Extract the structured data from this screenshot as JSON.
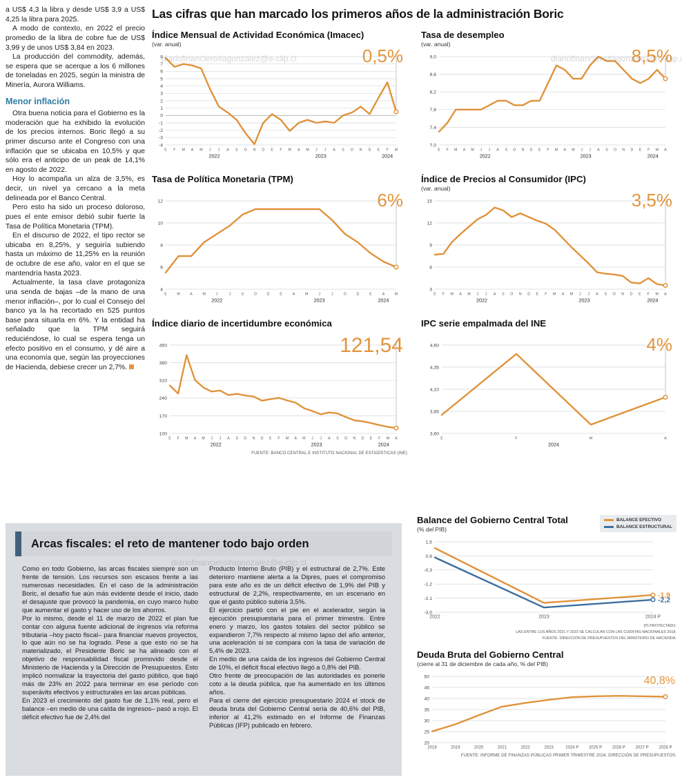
{
  "colors": {
    "accent": "#e2953c",
    "blue": "#3c6e9e",
    "heading_teal": "#2f7da6",
    "panel_gray": "#d9dde1",
    "header_bar": "#42607c"
  },
  "watermark": "diariofinanciero#agonzalez@e-clip.cl",
  "main_title": "Las cifras que han marcado los primeros años de la administración Boric",
  "article": {
    "top": [
      "a US$ 4,3 la libra y desde US$ 3,9 a US$ 4,25 la libra para 2025.",
      "A modo de contexto, en 2022 el precio promedio de la libra de cobre fue de US$ 3,99 y de unos US$ 3,84 en 2023.",
      "La producción del commodity, además, se espera que se acerque a los 6 millones de toneladas en 2025, según la ministra de Minería, Aurora Williams."
    ],
    "heading": "Menor inflación",
    "inflacion": [
      "Otra buena noticia para el Gobierno es la moderación que ha exhibido la evolución de los precios internos. Boric llegó a su primer discurso ante el Congreso con una inflación que se ubicaba en 10,5% y que sólo era el anticipo de un peak de 14,1% en agosto de 2022.",
      "Hoy lo acompaña un alza de 3,5%, es decir, un nivel ya cercano a la meta delineada por el Banco Central.",
      "Pero esto ha sido un proceso doloroso, pues el ente emisor debió subir fuerte la Tasa de Política Monetaria (TPM).",
      "En el discurso de 2022, el tipo rector se ubicaba en 8,25%, y seguiría subiendo hasta un máximo de 11,25% en la reunión de octubre de ese año, valor en el que se mantendría hasta 2023."
    ],
    "last": "Actualmente, la tasa clave protagoniza una senda de bajas –de la mano de una menor inflación–, por lo cual el Consejo del banco ya la ha recortado en 525 puntos base para situarla en 6%. Y la entidad ha señalado que la TPM seguirá reduciéndose, lo cual se espera tenga un efecto positivo en el consumo, y dé aire a una economía que, según las proyecciones de Hacienda, debiese crecer un 2,7%."
  },
  "fiscal": {
    "title": "Arcas fiscales: el reto de mantener todo bajo orden",
    "col1": [
      "Como en todo Gobierno, las arcas fiscales siempre son un frente de tensión. Los recursos son escasos frente a las numerosas necesidades. En el caso de la administración Boric, el desafío fue aún más evidente desde el inicio, dado el desajuste que provocó la pandemia, en cuyo marco hubo que aumentar el gasto y hacer uso de los ahorros.",
      "Por lo mismo, desde el 11 de marzo de 2022 el plan fue contar con alguna fuente adicional de ingresos vía reforma tributaria –hoy pacto fiscal– para financiar nuevos proyectos, lo que aún no se ha logrado. Pese a que esto no se ha materializado, el Presidente Boric se ha alineado con el objetivo de responsabilidad fiscal promovido desde el Ministerio de Hacienda y la Dirección de Presupuestos. Esto implicó normalizar la trayectoria del gasto público, que bajó más de 23% en 2022 para terminar en ese período con superávits efectivos y estructurales en las arcas públicas.",
      "En 2023 el crecimiento del gasto fue de 1,1% real, pero el balance –en medio de una caída de ingresos– pasó a rojo. El déficit efectivo fue de 2,4% del"
    ],
    "col2": [
      "Producto Interno Bruto (PIB) y el estructural de 2,7%. Este deterioro mantiene alerta a la Dipres, pues el compromiso para este año es de un déficit efectivo de 1,9% del PIB y estructural de 2,2%, respectivamente, en un escenario en que el gasto público subiría 3,5%.",
      "El ejercicio partió con el pie en el acelerador, según la ejecución presupuestaria para el primer trimestre. Entre enero y marzo, los gastos totales del sector público se expandieron 7,7% respecto al mismo lapso del año anterior, una aceleración si se compara con la tasa de variación de 5,4% de 2023.",
      "En medio de una caída de los ingresos del Gobierno Central de 10%, el déficit fiscal efectivo llegó a 0,8% del PIB.",
      "Otro frente de preocupación de las autoridades es ponerle coto a la deuda pública, que ha aumentado en los últimos años.",
      "Para el cierre del ejercicio presupuestario 2024 el stock de deuda bruta del Gobierno Central sería de 40,6% del PIB, inferior al 41,2% estimado en el Informe de Finanzas Públicas (IFP) publicado en febrero."
    ]
  },
  "chart_data": [
    {
      "id": "imacec",
      "type": "line",
      "title": "Índice Mensual de Actividad Económica (Imacec)",
      "subtitle": "(var. anual)",
      "big_value": "0,5%",
      "ylim": [
        -4,
        8
      ],
      "yticks": [
        8,
        7,
        6,
        5,
        4,
        3,
        2,
        1,
        0,
        -1,
        -2,
        -3,
        -4
      ],
      "ytick_labels": [
        "8",
        "7",
        "6",
        "5",
        "4",
        "3",
        "2",
        "1",
        "0",
        "-1",
        "-2",
        "-3",
        "-4"
      ],
      "x_labels": [
        "E",
        "F",
        "M",
        "A",
        "M",
        "J",
        "J",
        "A",
        "S",
        "O",
        "N",
        "D",
        "E",
        "F",
        "M",
        "A",
        "M",
        "J",
        "J",
        "A",
        "S",
        "O",
        "N",
        "D",
        "E",
        "F",
        "M"
      ],
      "year_labels": [
        {
          "label": "2022",
          "start": 0,
          "end": 11
        },
        {
          "label": "2023",
          "start": 12,
          "end": 23
        },
        {
          "label": "2024",
          "start": 24,
          "end": 26
        }
      ],
      "margins": {
        "l": 20
      },
      "series": [
        {
          "name": "Imacec",
          "color": "#e0923a",
          "values": [
            7.8,
            6.6,
            7.0,
            6.8,
            6.4,
            3.6,
            1.2,
            0.4,
            -0.6,
            -2.4,
            -3.9,
            -1.0,
            0.2,
            -0.6,
            -2.1,
            -1.0,
            -0.6,
            -1.0,
            -0.8,
            -1.0,
            0.0,
            0.4,
            1.2,
            0.2,
            2.4,
            4.5,
            0.5
          ]
        }
      ]
    },
    {
      "id": "desempleo",
      "type": "line",
      "title": "Tasa de desempleo",
      "subtitle": "(var. anual)",
      "big_value": "8,5%",
      "ylim": [
        7.0,
        9.0
      ],
      "yticks": [
        9.0,
        8.6,
        8.2,
        7.8,
        7.4,
        7.0
      ],
      "ytick_labels": [
        "9,0",
        "8,6",
        "8,2",
        "7,8",
        "7,4",
        "7,0"
      ],
      "x_labels": [
        "E",
        "F",
        "M",
        "A",
        "M",
        "J",
        "J",
        "A",
        "S",
        "O",
        "N",
        "D",
        "E",
        "F",
        "M",
        "A",
        "M",
        "J",
        "J",
        "A",
        "S",
        "O",
        "N",
        "D",
        "E",
        "F",
        "M",
        "A"
      ],
      "year_labels": [
        {
          "label": "2022",
          "start": 0,
          "end": 11
        },
        {
          "label": "2023",
          "start": 12,
          "end": 23
        },
        {
          "label": "2024",
          "start": 24,
          "end": 27
        }
      ],
      "margins": {
        "l": 26
      },
      "series": [
        {
          "name": "Tasa de desempleo",
          "color": "#e0923a",
          "values": [
            7.3,
            7.5,
            7.8,
            7.8,
            7.8,
            7.8,
            7.9,
            8.0,
            8.0,
            7.9,
            7.9,
            8.0,
            8.0,
            8.4,
            8.8,
            8.7,
            8.5,
            8.5,
            8.8,
            9.0,
            8.9,
            8.9,
            8.7,
            8.5,
            8.4,
            8.5,
            8.7,
            8.5
          ]
        }
      ]
    },
    {
      "id": "tpm",
      "type": "line",
      "title": "Tasa de Política Monetaria (TPM)",
      "subtitle": "",
      "big_value": "6%",
      "ylim": [
        4,
        12
      ],
      "yticks": [
        12,
        10,
        8,
        6,
        4
      ],
      "ytick_labels": [
        "12",
        "10",
        "8",
        "6",
        "4"
      ],
      "x_labels": [
        "E",
        "M",
        "A",
        "M",
        "J",
        "J",
        "S",
        "O",
        "D",
        "E",
        "A",
        "M",
        "J",
        "J",
        "O",
        "D",
        "E",
        "A",
        "M"
      ],
      "year_labels": [
        {
          "label": "2022",
          "start": 0,
          "end": 8
        },
        {
          "label": "2023",
          "start": 9,
          "end": 15
        },
        {
          "label": "2024",
          "start": 16,
          "end": 18
        }
      ],
      "margins": {
        "l": 20
      },
      "series": [
        {
          "name": "TPM",
          "color": "#e0923a",
          "values": [
            5.5,
            7.0,
            7.0,
            8.25,
            9.0,
            9.75,
            10.75,
            11.25,
            11.25,
            11.25,
            11.25,
            11.25,
            11.25,
            10.25,
            9.0,
            8.25,
            7.25,
            6.5,
            6.0
          ]
        }
      ]
    },
    {
      "id": "ipc",
      "type": "line",
      "title": "Índice de Precios al Consumidor (IPC)",
      "subtitle": "(var. anual)",
      "big_value": "3,5%",
      "ylim": [
        3,
        15
      ],
      "yticks": [
        15,
        12,
        9,
        6,
        3
      ],
      "ytick_labels": [
        "15",
        "12",
        "9",
        "6",
        "3"
      ],
      "x_labels": [
        "E",
        "F",
        "M",
        "A",
        "M",
        "J",
        "J",
        "A",
        "S",
        "O",
        "N",
        "D",
        "E",
        "F",
        "M",
        "A",
        "M",
        "J",
        "J",
        "A",
        "S",
        "O",
        "N",
        "D",
        "E",
        "F",
        "M",
        "A"
      ],
      "year_labels": [
        {
          "label": "2022",
          "start": 0,
          "end": 11
        },
        {
          "label": "2023",
          "start": 12,
          "end": 23
        },
        {
          "label": "2024",
          "start": 24,
          "end": 27
        }
      ],
      "margins": {
        "l": 20
      },
      "series": [
        {
          "name": "IPC",
          "color": "#e0923a",
          "values": [
            7.7,
            7.8,
            9.4,
            10.5,
            11.5,
            12.5,
            13.1,
            14.1,
            13.7,
            12.8,
            13.3,
            12.8,
            12.3,
            11.9,
            11.1,
            9.9,
            8.7,
            7.6,
            6.5,
            5.3,
            5.1,
            5.0,
            4.8,
            3.9,
            3.8,
            4.5,
            3.7,
            3.5
          ]
        }
      ]
    },
    {
      "id": "incertidumbre",
      "type": "line",
      "title": "Índice diario de incertidumbre económica",
      "subtitle": "",
      "big_value": "121,54",
      "source": "FUENTE: BANCO CENTRAL E INSTITUTO NACIONAL DE ESTADÍSTICAS (INE)",
      "ylim": [
        100,
        450
      ],
      "yticks": [
        450,
        380,
        310,
        240,
        170,
        100
      ],
      "ytick_labels": [
        "450",
        "380",
        "310",
        "240",
        "170",
        "100"
      ],
      "x_labels": [
        "E",
        "F",
        "M",
        "A",
        "M",
        "J",
        "J",
        "A",
        "S",
        "O",
        "N",
        "D",
        "E",
        "F",
        "M",
        "A",
        "M",
        "J",
        "J",
        "A",
        "S",
        "O",
        "N",
        "D",
        "E",
        "F",
        "M",
        "A"
      ],
      "year_labels": [
        {
          "label": "2022",
          "start": 0,
          "end": 11
        },
        {
          "label": "2023",
          "start": 12,
          "end": 23
        },
        {
          "label": "2024",
          "start": 24,
          "end": 27
        }
      ],
      "margins": {
        "l": 26
      },
      "series": [
        {
          "name": "Incertidumbre económica",
          "color": "#e0923a",
          "values": [
            290,
            258,
            410,
            312,
            282,
            266,
            270,
            252,
            257,
            250,
            246,
            230,
            236,
            241,
            231,
            222,
            200,
            189,
            176,
            183,
            179,
            165,
            152,
            148,
            141,
            133,
            126,
            121.54
          ]
        }
      ]
    },
    {
      "id": "ipc_empalmada",
      "type": "line",
      "title": "IPC serie empalmada del INE",
      "subtitle": "",
      "big_value": "4%",
      "ylim": [
        3.6,
        4.6
      ],
      "yticks": [
        4.6,
        4.35,
        4.1,
        3.85,
        3.6
      ],
      "ytick_labels": [
        "4,60",
        "4,35",
        "4,10",
        "3,85",
        "3,60"
      ],
      "x_labels": [
        "E",
        "F",
        "M",
        "A"
      ],
      "year_labels": [
        {
          "label": "2024",
          "start": 0,
          "end": 3
        }
      ],
      "margins": {
        "l": 30
      },
      "series": [
        {
          "name": "IPC serie empalmada",
          "color": "#e0923a",
          "values": [
            3.81,
            4.5,
            3.7,
            4.01
          ]
        }
      ]
    },
    {
      "id": "balance",
      "type": "line",
      "title": "Balance del Gobierno Central Total",
      "subtitle": "(% del PIB)",
      "big_value": "",
      "connector": false,
      "notes": [
        "(P) PROYECTADO.",
        "LAS ENTRE LOS AÑOS 2021 Y 2023 SE CALCULAN CON LAS CUENTAS NACIONALES 2018.",
        "FUENTE: DIRECCIÓN DE PRESUPUESTOS DEL MINISTERIO DE HACIENDA."
      ],
      "ylim": [
        -3.0,
        1.5
      ],
      "yticks": [
        1.5,
        0.6,
        -0.3,
        -1.2,
        -2.1,
        -3.0
      ],
      "ytick_labels": [
        "1,5",
        "0,6",
        "-0,3",
        "-1,2",
        "-2,1",
        "-3,0"
      ],
      "x_labels": [
        "2022",
        "2023",
        "2024 P"
      ],
      "xfs": 7,
      "margins": {
        "l": 26,
        "r": 34,
        "b": 14
      },
      "series": [
        {
          "name": "BALANCE EFECTIVO",
          "color": "#e0923a",
          "values": [
            1.1,
            -2.4,
            -1.9
          ],
          "end_label": "-1,9"
        },
        {
          "name": "BALANCE ESTRUCTURAL",
          "color": "#3c6e9e",
          "values": [
            0.5,
            -2.7,
            -2.2
          ],
          "end_label": "-2,2"
        }
      ]
    },
    {
      "id": "deuda",
      "type": "line",
      "title": "Deuda Bruta del Gobierno Central",
      "subtitle": "(cierre al 31 de diciembre de cada año, % del PIB)",
      "big_value": "40,8%",
      "connector": false,
      "source": "FUENTE: INFORME DE FINANZAS PÚBLICAS PRIMER TRIMESTRE 2024, DIRECCIÓN DE PRESUPUESTOS.",
      "ylim": [
        20,
        50
      ],
      "yticks": [
        50,
        45,
        40,
        35,
        30,
        25,
        20
      ],
      "ytick_labels": [
        "50",
        "45",
        "40",
        "35",
        "30",
        "25",
        "20"
      ],
      "x_labels": [
        "2018",
        "2019",
        "2020",
        "2021",
        "2022",
        "2023",
        "2024 P",
        "2025 P",
        "2026 P",
        "2027 P",
        "2028 P"
      ],
      "xfs": 6,
      "margins": {
        "l": 22,
        "b": 14
      },
      "series": [
        {
          "name": "Deuda Bruta",
          "color": "#e0923a",
          "values": [
            25.1,
            28.3,
            32.4,
            36.3,
            38.0,
            39.4,
            40.6,
            41.0,
            41.2,
            41.0,
            40.8
          ]
        }
      ]
    }
  ]
}
